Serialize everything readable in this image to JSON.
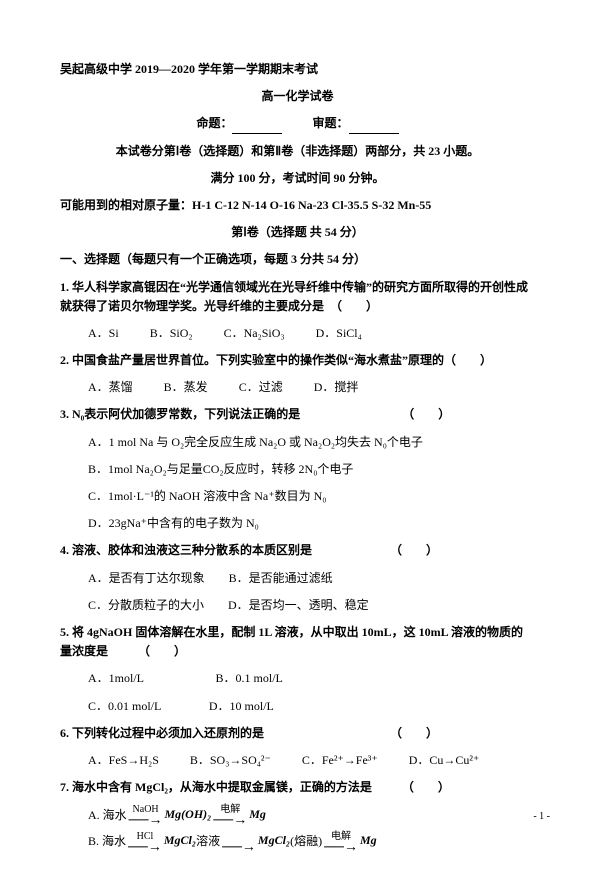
{
  "header": {
    "schoolTitle": "吴起高级中学 2019—2020 学年第一学期期末考试",
    "paperTitle": "高一化学试卷",
    "nameLabel": "命题：",
    "reviewLabel": "审题：",
    "structureLine": "本试卷分第Ⅰ卷（选择题）和第Ⅱ卷（非选择题）两部分，共 23 小题。",
    "scoreLine": "满分 100 分，考试时间 90 分钟。",
    "atomicMasses": "可能用到的相对原子量：H-1  C-12  N-14  O-16 Na-23 Cl-35.5 S-32 Mn-55",
    "part1Title": "第Ⅰ卷（选择题  共 54 分）",
    "sectionTitle": "一、选择题（每题只有一个正确选项，每题 3 分共 54 分）"
  },
  "questions": [
    {
      "num": "1.",
      "text": "华人科学家高锟因在“光学通信领域光在光导纤维中传输”的研究方面所取得的开创性成就获得了诺贝尔物理学奖。光导纤维的主要成分是　（　　）",
      "opts": [
        "A．Si",
        "B．SiO₂",
        "C．Na₂SiO₃",
        "D．SiCl₄"
      ]
    },
    {
      "num": "2.",
      "text": "中国食盐产量居世界首位。下列实验室中的操作类似“海水煮盐”原理的（　　）",
      "opts": [
        "A．蒸馏",
        "B．蒸发",
        "C．过滤",
        "D．搅拌"
      ]
    },
    {
      "num": "3.",
      "text": "N₀表示阿伏加德罗常数，下列说法正确的是　　　　　　　　　（　　）",
      "opts": [
        "A．1 mol Na 与 O₂完全反应生成 Na₂O 或 Na₂O₂均失去 N₀个电子",
        "B．1mol Na₂O₂与足量CO₂反应时，转移 2N₀个电子",
        "C．1mol·L⁻¹的 NaOH 溶液中含 Na⁺数目为 N₀",
        "D．23gNa⁺中含有的电子数为 N₀"
      ],
      "stack": true
    },
    {
      "num": "4.",
      "text": "溶液、胶体和浊液这三种分散系的本质区别是　　　　　　　（　　）",
      "opts": [
        "A．是否有丁达尔现象　　B．是否能通过滤纸",
        "C．分散质粒子的大小　　D．是否均一、透明、稳定"
      ],
      "stack": true
    },
    {
      "num": "5.",
      "text": "将 4gNaOH 固体溶解在水里，配制 1L 溶液，从中取出 10mL，这 10mL 溶液的物质的量浓度是　　　（　　）",
      "opts": [
        "A．1mol/L　　　　　　B．0.1 mol/L",
        "C．0.01 mol/L　　　　D．10 mol/L"
      ],
      "stack": true
    },
    {
      "num": "6.",
      "text": "下列转化过程中必须加入还原剂的是　　　　　　　　　　　（　　）",
      "opts": [
        "A．FeS→H₂S",
        "B．SO₃→SO₄²⁻",
        "C．Fe²⁺→Fe³⁺",
        "D．Cu→Cu²⁺"
      ]
    },
    {
      "num": "7.",
      "text": "海水中含有 MgCl₂，从海水中提取金属镁，正确的方法是　　　（　　）"
    }
  ],
  "reactions": {
    "a": {
      "label": "A. 海水",
      "r1top": "NaOH",
      "mid1": "Mg(OH)₂",
      "r2top": "电解",
      "end": "Mg"
    },
    "b": {
      "label": "B. 海水",
      "r1top": "HCl",
      "mid1": "MgCl₂",
      "mid1suffix": " 溶液",
      "mid2": "MgCl₂",
      "mid2suffix": "(熔融)",
      "r3top": "电解",
      "end": "Mg"
    }
  },
  "pageNumber": "- 1 -"
}
